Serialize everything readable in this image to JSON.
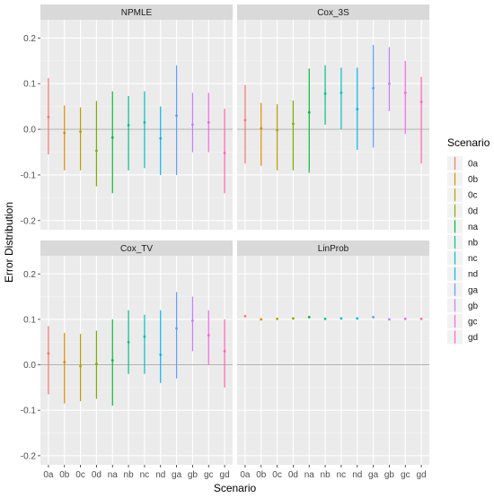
{
  "chart_data": {
    "type": "errorbar",
    "xlabel": "Scenario",
    "ylabel": "Error Distribution",
    "categories": [
      "0a",
      "0b",
      "0c",
      "0d",
      "na",
      "nb",
      "nc",
      "nd",
      "ga",
      "gb",
      "gc",
      "gd"
    ],
    "ylim": [
      -0.22,
      0.24
    ],
    "yticks": [
      -0.2,
      -0.1,
      0.0,
      0.1,
      0.2
    ],
    "ytick_labels": [
      "-0.2",
      "-0.1",
      "0.0",
      "0.1",
      "0.2"
    ],
    "grid": true,
    "reference_line": 0,
    "legend": {
      "title": "Scenario",
      "position": "right",
      "entries": [
        "0a",
        "0b",
        "0c",
        "0d",
        "na",
        "nb",
        "nc",
        "nd",
        "ga",
        "gb",
        "gc",
        "gd"
      ]
    },
    "colors": [
      "#F8766D",
      "#DE8C00",
      "#B79F00",
      "#7CAE00",
      "#00BA38",
      "#00C08B",
      "#00BFC4",
      "#00B4F0",
      "#619CFF",
      "#C77CFF",
      "#F564E3",
      "#FF64B0"
    ],
    "panels": [
      {
        "title": "NPMLE",
        "means": [
          0.027,
          -0.008,
          -0.005,
          -0.047,
          -0.018,
          0.009,
          0.015,
          -0.02,
          0.03,
          0.01,
          0.015,
          -0.052
        ],
        "lower": [
          -0.055,
          -0.09,
          -0.09,
          -0.125,
          -0.14,
          -0.09,
          -0.085,
          -0.1,
          -0.1,
          -0.05,
          -0.05,
          -0.14
        ],
        "upper": [
          0.112,
          0.052,
          0.048,
          0.062,
          0.083,
          0.073,
          0.083,
          0.05,
          0.14,
          0.08,
          0.08,
          0.045
        ]
      },
      {
        "title": "Cox_3S",
        "means": [
          0.02,
          0.002,
          -0.002,
          0.012,
          0.037,
          0.078,
          0.08,
          0.044,
          0.09,
          0.1,
          0.08,
          0.06
        ],
        "lower": [
          -0.075,
          -0.08,
          -0.09,
          -0.09,
          -0.095,
          0.01,
          0.0,
          -0.045,
          -0.04,
          0.04,
          -0.01,
          -0.075
        ],
        "upper": [
          0.097,
          0.058,
          0.055,
          0.063,
          0.133,
          0.14,
          0.135,
          0.135,
          0.185,
          0.18,
          0.15,
          0.115
        ]
      },
      {
        "title": "Cox_TV",
        "means": [
          0.025,
          0.006,
          -0.003,
          0.002,
          0.01,
          0.05,
          0.062,
          0.022,
          0.08,
          0.097,
          0.065,
          0.03
        ],
        "lower": [
          -0.065,
          -0.085,
          -0.08,
          -0.075,
          -0.09,
          -0.02,
          -0.02,
          -0.04,
          -0.03,
          0.03,
          0.0,
          -0.05
        ],
        "upper": [
          0.085,
          0.07,
          0.068,
          0.075,
          0.1,
          0.12,
          0.11,
          0.12,
          0.16,
          0.15,
          0.12,
          0.1
        ]
      },
      {
        "title": "LinProb",
        "means": [
          0.107,
          0.1,
          0.101,
          0.102,
          0.105,
          0.101,
          0.102,
          0.102,
          0.105,
          0.1,
          0.101,
          0.101
        ],
        "lower": [
          0.105,
          0.099,
          0.1,
          0.1,
          0.103,
          0.1,
          0.101,
          0.101,
          0.103,
          0.099,
          0.1,
          0.1
        ],
        "upper": [
          0.109,
          0.101,
          0.102,
          0.104,
          0.107,
          0.102,
          0.103,
          0.103,
          0.107,
          0.101,
          0.102,
          0.102
        ]
      }
    ]
  }
}
